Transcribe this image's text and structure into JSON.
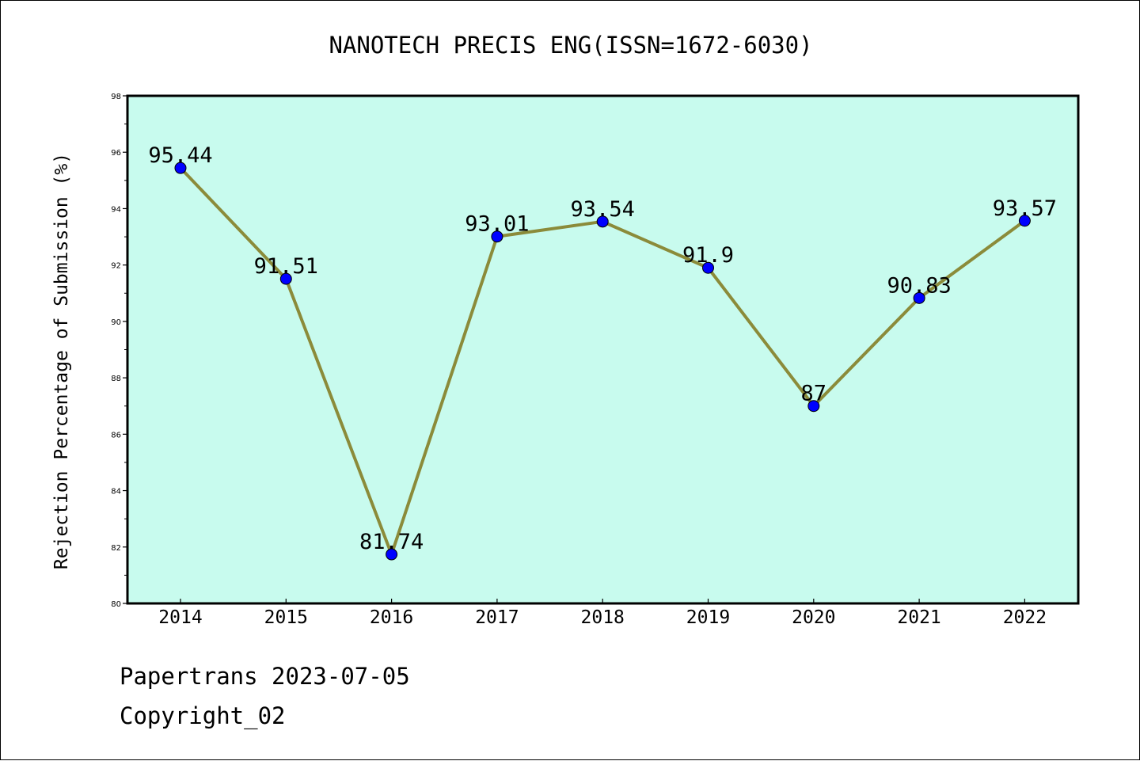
{
  "chart_data": {
    "type": "line",
    "title": "NANOTECH PRECIS ENG(ISSN=1672-6030)",
    "ylabel": "Rejection Percentage of Submission (%)",
    "xlabel": "",
    "categories": [
      "2014",
      "2015",
      "2016",
      "2017",
      "2018",
      "2019",
      "2020",
      "2021",
      "2022"
    ],
    "values": [
      95.44,
      91.51,
      81.74,
      93.01,
      93.54,
      91.9,
      87,
      90.83,
      93.57
    ],
    "data_labels": [
      "95.44",
      "91.51",
      "81.74",
      "93.01",
      "93.54",
      "91.9",
      "87",
      "90.83",
      "93.57"
    ],
    "ylim": [
      80,
      98
    ],
    "yticks": [
      "80",
      "82",
      "84",
      "86",
      "88",
      "90",
      "92",
      "94",
      "96",
      "98"
    ],
    "grid": false,
    "colors": {
      "plot_background": "#c8fbee",
      "line": "#8b8b3a",
      "marker": "#0000ff"
    }
  },
  "footer": {
    "line1": "Papertrans 2023-07-05",
    "line2": "Copyright_02"
  }
}
